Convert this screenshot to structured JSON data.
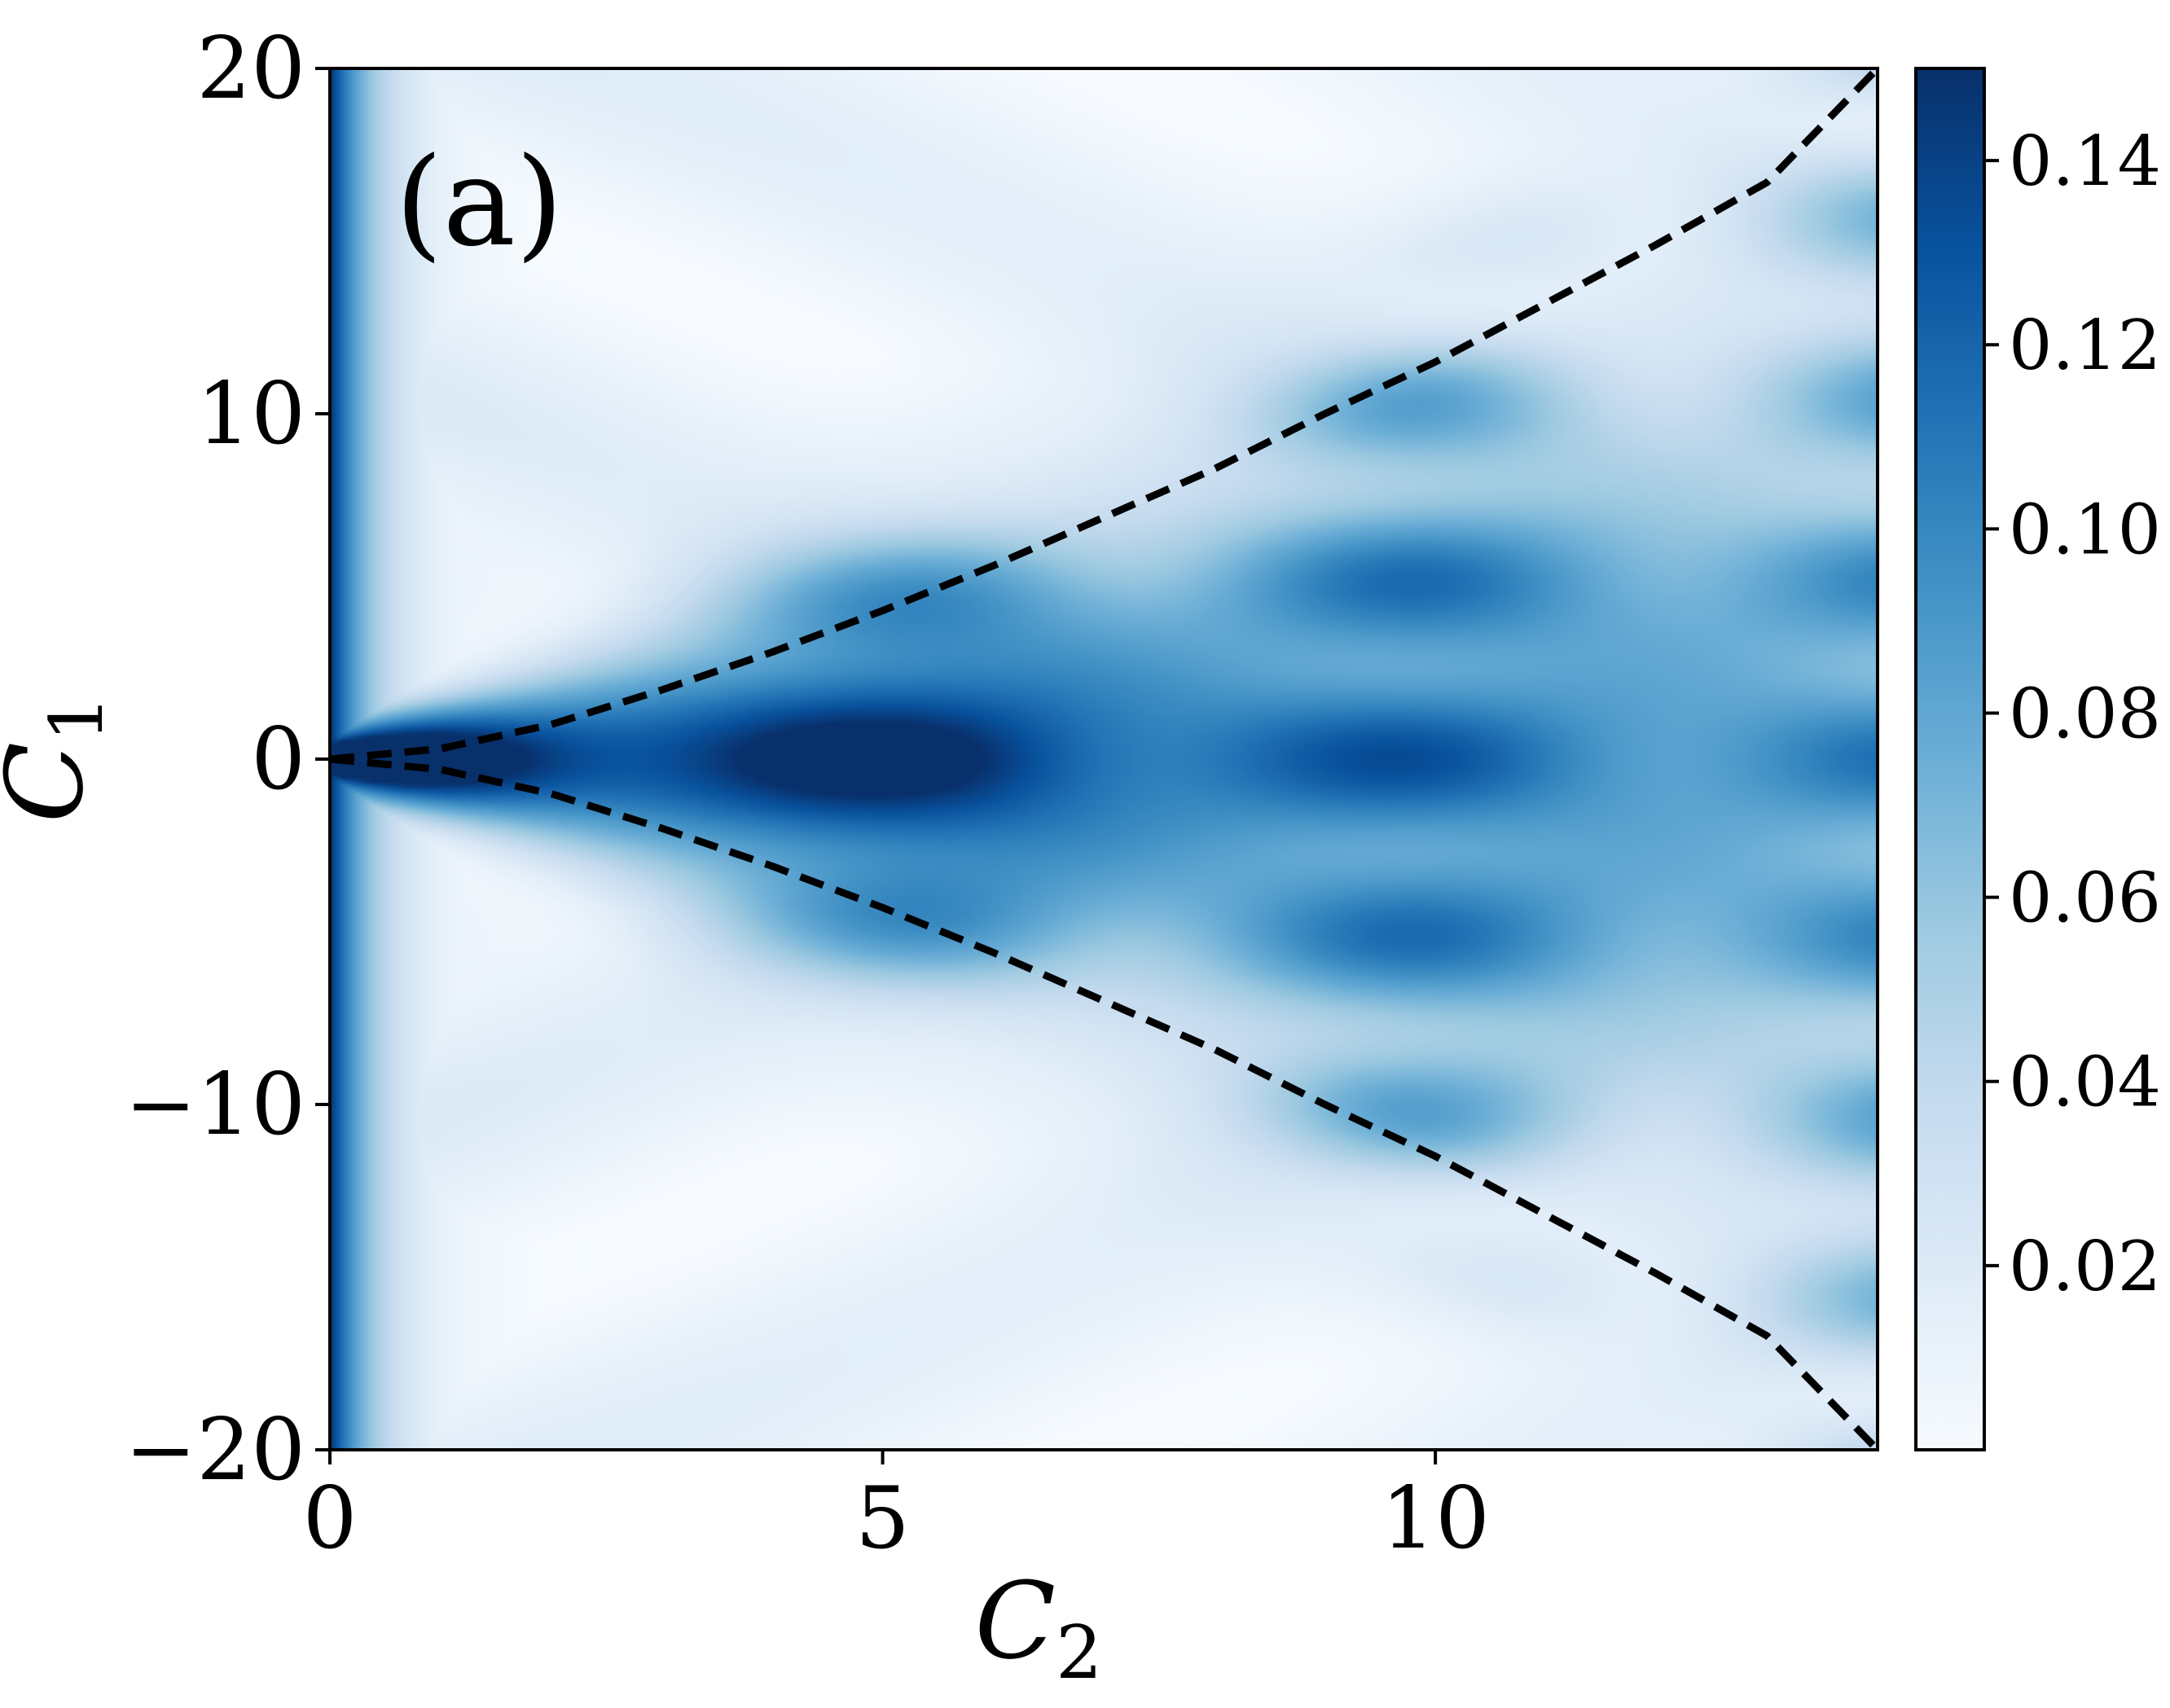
{
  "chart_data": {
    "type": "heatmap",
    "panel_label": "(a)",
    "xlabel": "C",
    "xlabel_subscript": "2",
    "ylabel": "C",
    "ylabel_subscript": "1",
    "xlim": [
      0,
      14
    ],
    "ylim": [
      -20,
      20
    ],
    "x_ticks": [
      0,
      5,
      10
    ],
    "x_tick_labels": [
      "0",
      "5",
      "10"
    ],
    "y_ticks": [
      -20,
      -10,
      0,
      10,
      20
    ],
    "y_tick_labels": [
      "−20",
      "−10",
      "0",
      "10",
      "20"
    ],
    "colormap": "Blues",
    "colorbar": {
      "range": [
        0.0,
        0.15
      ],
      "ticks": [
        0.02,
        0.04,
        0.06,
        0.08,
        0.1,
        0.12,
        0.14
      ],
      "tick_labels": [
        "0.02",
        "0.04",
        "0.06",
        "0.08",
        "0.10",
        "0.12",
        "0.14"
      ]
    },
    "boundary_curves": {
      "style": "dashed",
      "color": "#000000",
      "upper": {
        "x": [
          0,
          1,
          2,
          3,
          4,
          5,
          6,
          7,
          8,
          9,
          10,
          11,
          12,
          13,
          14
        ],
        "y": [
          0,
          0.3,
          1.0,
          2.0,
          3.1,
          4.3,
          5.6,
          7.0,
          8.4,
          10.0,
          11.5,
          13.2,
          14.9,
          16.7,
          20.0
        ]
      },
      "lower": {
        "x": [
          0,
          1,
          2,
          3,
          4,
          5,
          6,
          7,
          8,
          9,
          10,
          11,
          12,
          13,
          14
        ],
        "y": [
          0,
          -0.3,
          -1.0,
          -2.0,
          -3.1,
          -4.3,
          -5.6,
          -7.0,
          -8.4,
          -10.0,
          -11.5,
          -13.2,
          -14.9,
          -16.7,
          -20.0
        ]
      }
    },
    "colors": {
      "cmap_low": "#f7fbff",
      "cmap_high": "#08306b"
    }
  }
}
